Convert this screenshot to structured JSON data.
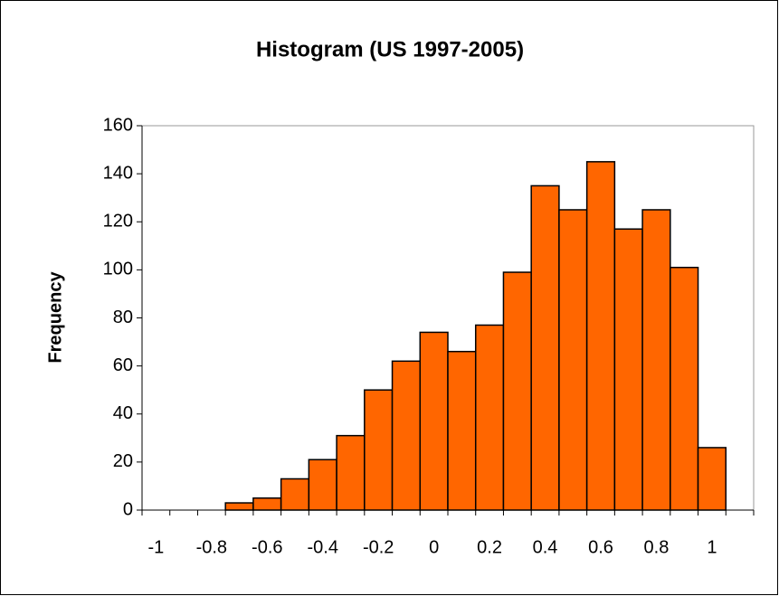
{
  "chart_data": {
    "type": "bar",
    "title": "Histogram (US 1997-2005)",
    "y_label": "Frequency",
    "categories": [
      "-1",
      null,
      "-0.8",
      null,
      "-0.6",
      null,
      "-0.4",
      null,
      "-0.2",
      null,
      "0",
      null,
      "0.2",
      null,
      "0.4",
      null,
      "0.6",
      null,
      "0.8",
      null,
      "1",
      null
    ],
    "values": [
      0,
      0,
      0,
      3,
      5,
      13,
      21,
      31,
      50,
      62,
      74,
      66,
      77,
      99,
      135,
      125,
      145,
      117,
      125,
      101,
      26,
      0
    ],
    "color": "#ff6600",
    "ylim": [
      0,
      160
    ],
    "yticks": [
      0,
      20,
      40,
      60,
      80,
      100,
      120,
      140,
      160
    ],
    "grid": false
  }
}
